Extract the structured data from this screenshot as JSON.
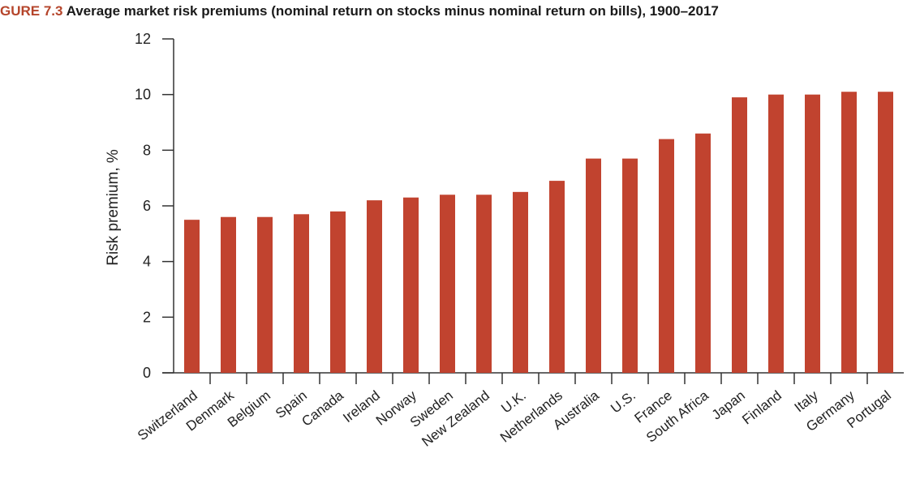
{
  "figure_label": "GURE 7.3",
  "chart_data": {
    "type": "bar",
    "title": "Average market risk premiums (nominal return on stocks minus nominal return on bills), 1900–2017",
    "xlabel": "",
    "ylabel": "Risk premium, %",
    "ylim": [
      0,
      12
    ],
    "yticks": [
      0,
      2,
      4,
      6,
      8,
      10,
      12
    ],
    "categories": [
      "Switzerland",
      "Denmark",
      "Belgium",
      "Spain",
      "Canada",
      "Ireland",
      "Norway",
      "Sweden",
      "New Zealand",
      "U.K.",
      "Netherlands",
      "Australia",
      "U.S.",
      "France",
      "South Africa",
      "Japan",
      "Finland",
      "Italy",
      "Germany",
      "Portugal"
    ],
    "values": [
      5.5,
      5.6,
      5.6,
      5.7,
      5.8,
      6.2,
      6.3,
      6.4,
      6.4,
      6.5,
      6.9,
      7.7,
      7.7,
      8.4,
      8.6,
      9.9,
      10.0,
      10.0,
      10.1,
      10.1
    ],
    "bar_color": "#c1432f",
    "grid": false,
    "legend": "none"
  }
}
